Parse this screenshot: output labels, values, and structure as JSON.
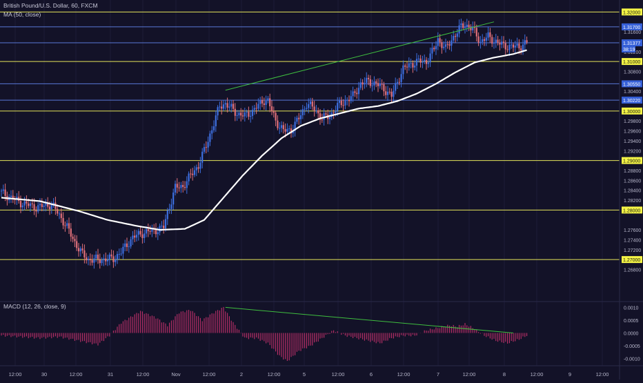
{
  "header": {
    "symbol": "British Pound/U.S. Dollar, 60, FXCM",
    "ma_label": "MA (50, close)",
    "macd_label": "MACD (12, 26, close, 9)"
  },
  "colors": {
    "background": "#131228",
    "up_candle": "#3d6fe0",
    "down_candle": "#e0707a",
    "moving_average": "#ffffff",
    "support_resistance": "#e6e65a",
    "blue_level": "#5a78d8",
    "trendline": "#3fbf3f",
    "macd_histogram": "#c0306a"
  },
  "chart_data": [
    {
      "type": "candlestick",
      "symbol": "British Pound/U.S. Dollar",
      "interval": "60",
      "source": "FXCM",
      "ylim": [
        1.265,
        1.322
      ],
      "grid": true,
      "x_tick_labels": [
        "12:00",
        "30",
        "12:00",
        "31",
        "12:00",
        "Nov",
        "12:00",
        "2",
        "12:00",
        "5",
        "12:00",
        "6",
        "12:00",
        "7",
        "12:00",
        "8",
        "12:00",
        "9",
        "12:00"
      ],
      "y_tick_labels": [
        "1.31600",
        "1.31200",
        "1.30800",
        "1.30400",
        "1.29800",
        "1.29600",
        "1.29400",
        "1.29200",
        "1.28800",
        "1.28600",
        "1.28400",
        "1.28200",
        "1.27600",
        "1.27400",
        "1.27200",
        "1.26800"
      ],
      "horizontal_levels": [
        {
          "label": "1.32000",
          "value": 1.32,
          "color": "yellow"
        },
        {
          "label": "1.31700",
          "value": 1.317,
          "color": "blue"
        },
        {
          "label": "1.31377",
          "value": 1.31377,
          "color": "blue",
          "note": "last price"
        },
        {
          "label": "38:19",
          "value": 1.31377,
          "color": "blue",
          "note": "bar countdown"
        },
        {
          "label": "1.31000",
          "value": 1.31,
          "color": "yellow"
        },
        {
          "label": "1.30550",
          "value": 1.3055,
          "color": "blue"
        },
        {
          "label": "1.30220",
          "value": 1.3022,
          "color": "blue"
        },
        {
          "label": "1.30000",
          "value": 1.3,
          "color": "yellow"
        },
        {
          "label": "1.29000",
          "value": 1.29,
          "color": "yellow"
        },
        {
          "label": "1.28000",
          "value": 1.28,
          "color": "yellow"
        },
        {
          "label": "1.27000",
          "value": 1.27,
          "color": "yellow"
        }
      ],
      "price_keypoints": [
        [
          0,
          1.2835
        ],
        [
          10,
          1.2815
        ],
        [
          18,
          1.2805
        ],
        [
          26,
          1.2812
        ],
        [
          30,
          1.279
        ],
        [
          34,
          1.2765
        ],
        [
          38,
          1.2735
        ],
        [
          42,
          1.271
        ],
        [
          45,
          1.27
        ],
        [
          52,
          1.27
        ],
        [
          58,
          1.2702
        ],
        [
          62,
          1.2715
        ],
        [
          68,
          1.2745
        ],
        [
          74,
          1.2755
        ],
        [
          80,
          1.276
        ],
        [
          84,
          1.2765
        ],
        [
          86,
          1.2795
        ],
        [
          90,
          1.2845
        ],
        [
          94,
          1.2848
        ],
        [
          98,
          1.287
        ],
        [
          102,
          1.289
        ],
        [
          106,
          1.293
        ],
        [
          110,
          1.2975
        ],
        [
          113,
          1.301
        ],
        [
          116,
          1.3015
        ],
        [
          122,
          1.2995
        ],
        [
          126,
          1.299
        ],
        [
          130,
          1.3
        ],
        [
          136,
          1.3022
        ],
        [
          138,
          1.302
        ],
        [
          142,
          1.298
        ],
        [
          146,
          1.296
        ],
        [
          150,
          1.2962
        ],
        [
          154,
          1.2985
        ],
        [
          158,
          1.3015
        ],
        [
          162,
          1.3005
        ],
        [
          166,
          1.2985
        ],
        [
          170,
          1.299
        ],
        [
          174,
          1.301
        ],
        [
          178,
          1.302
        ],
        [
          182,
          1.303
        ],
        [
          186,
          1.3055
        ],
        [
          190,
          1.306
        ],
        [
          194,
          1.3055
        ],
        [
          198,
          1.3045
        ],
        [
          202,
          1.303
        ],
        [
          205,
          1.306
        ],
        [
          208,
          1.3085
        ],
        [
          212,
          1.3095
        ],
        [
          216,
          1.31
        ],
        [
          220,
          1.31
        ],
        [
          224,
          1.3125
        ],
        [
          226,
          1.3145
        ],
        [
          230,
          1.3125
        ],
        [
          234,
          1.315
        ],
        [
          238,
          1.317
        ],
        [
          240,
          1.3175
        ],
        [
          244,
          1.3165
        ],
        [
          248,
          1.314
        ],
        [
          252,
          1.315
        ],
        [
          256,
          1.314
        ],
        [
          260,
          1.3132
        ],
        [
          264,
          1.313
        ],
        [
          268,
          1.313
        ],
        [
          272,
          1.3138
        ]
      ],
      "moving_average": {
        "name": "MA (50, close)",
        "keypoints": [
          [
            0,
            1.2825
          ],
          [
            20,
            1.2818
          ],
          [
            40,
            1.2798
          ],
          [
            55,
            1.278
          ],
          [
            70,
            1.2768
          ],
          [
            82,
            1.276
          ],
          [
            95,
            1.2762
          ],
          [
            105,
            1.278
          ],
          [
            115,
            1.2825
          ],
          [
            125,
            1.287
          ],
          [
            135,
            1.291
          ],
          [
            145,
            1.2945
          ],
          [
            155,
            1.297
          ],
          [
            165,
            1.2985
          ],
          [
            175,
            1.2995
          ],
          [
            185,
            1.3005
          ],
          [
            195,
            1.301
          ],
          [
            205,
            1.302
          ],
          [
            215,
            1.3035
          ],
          [
            225,
            1.3055
          ],
          [
            235,
            1.3078
          ],
          [
            245,
            1.3098
          ],
          [
            255,
            1.3108
          ],
          [
            265,
            1.3115
          ],
          [
            272,
            1.3123
          ]
        ]
      },
      "trendlines": [
        {
          "from": [
            116,
            1.3042
          ],
          "to": [
            255,
            1.318
          ],
          "color": "green"
        }
      ]
    },
    {
      "type": "bar",
      "name": "MACD (12, 26, close, 9)",
      "ylim": [
        -0.0012,
        0.0012
      ],
      "y_tick_labels": [
        "0.0010",
        "0.0005",
        "0.0000",
        "-0.0005",
        "-0.0010"
      ],
      "histogram_keypoints": [
        [
          0,
          -0.0001
        ],
        [
          10,
          -0.00015
        ],
        [
          20,
          -0.0002
        ],
        [
          30,
          -0.00015
        ],
        [
          40,
          -0.0003
        ],
        [
          50,
          -0.00045
        ],
        [
          56,
          -0.0001
        ],
        [
          62,
          0.0004
        ],
        [
          72,
          0.00085
        ],
        [
          80,
          0.0006
        ],
        [
          86,
          0.0003
        ],
        [
          92,
          0.0008
        ],
        [
          98,
          0.0009
        ],
        [
          104,
          0.0005
        ],
        [
          110,
          0.0008
        ],
        [
          115,
          0.001
        ],
        [
          120,
          0.0004
        ],
        [
          126,
          -0.0002
        ],
        [
          132,
          -0.0002
        ],
        [
          138,
          -0.0004
        ],
        [
          144,
          -0.0009
        ],
        [
          148,
          -0.0011
        ],
        [
          154,
          -0.0007
        ],
        [
          160,
          -0.0005
        ],
        [
          166,
          -0.0002
        ],
        [
          172,
          0.0001
        ],
        [
          178,
          -0.0001
        ],
        [
          184,
          -0.0002
        ],
        [
          190,
          -0.0003
        ],
        [
          196,
          -0.0004
        ],
        [
          202,
          -0.0002
        ],
        [
          208,
          -0.0001
        ],
        [
          214,
          -0.0001
        ],
        [
          220,
          0.0001
        ],
        [
          226,
          0.0002
        ],
        [
          232,
          0.0003
        ],
        [
          236,
          0.00025
        ],
        [
          240,
          0.00035
        ],
        [
          244,
          0.0002
        ],
        [
          250,
          -0.0001
        ],
        [
          256,
          -0.0003
        ],
        [
          262,
          -0.0004
        ],
        [
          268,
          -0.00025
        ],
        [
          272,
          -0.0001
        ]
      ],
      "trendlines": [
        {
          "from": [
            116,
            0.001
          ],
          "to": [
            265,
            0.0
          ]
        }
      ]
    }
  ]
}
